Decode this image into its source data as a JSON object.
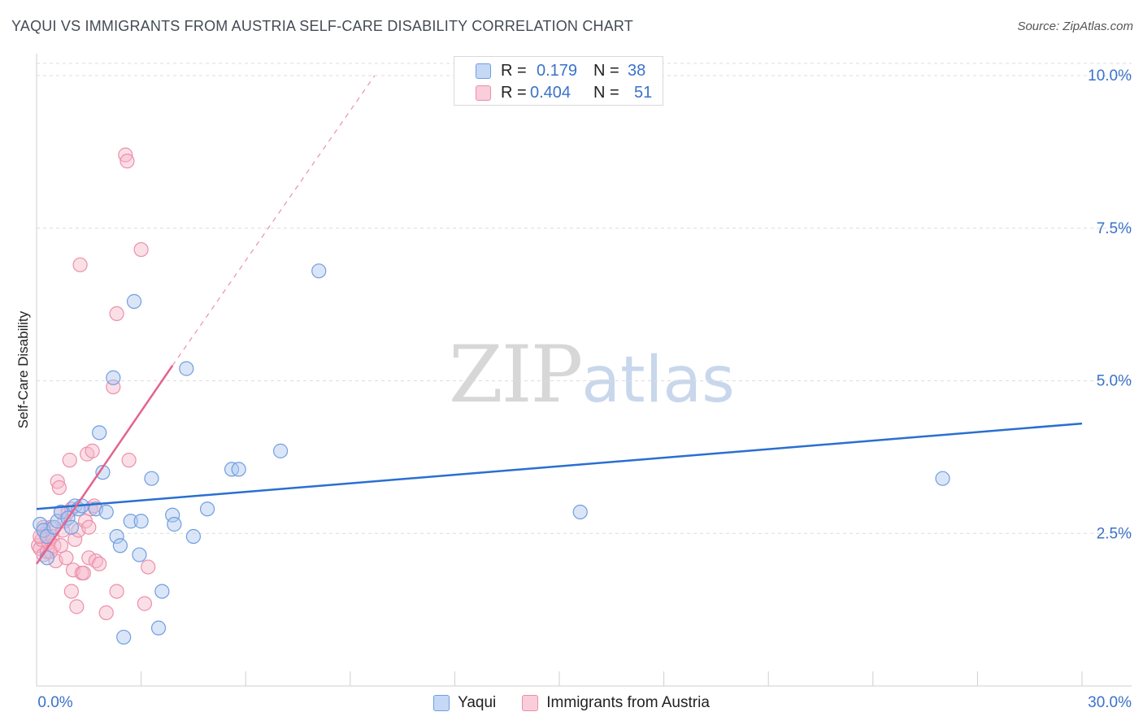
{
  "title": "YAQUI VS IMMIGRANTS FROM AUSTRIA SELF-CARE DISABILITY CORRELATION CHART",
  "source": "Source: ZipAtlas.com",
  "watermark": {
    "zip": "ZIP",
    "atlas": "atlas"
  },
  "colors": {
    "blue_fill": "#aec8f0",
    "blue_stroke": "#6f9ee0",
    "blue_line": "#2a6fd0",
    "pink_fill": "#f6b9ca",
    "pink_stroke": "#ec8faa",
    "pink_line": "#e3648d",
    "axis_text": "#3a72c9"
  },
  "legend": {
    "rows": [
      {
        "r_label": "R =",
        "r_value": "0.179",
        "n_label": "N =",
        "n_value": "38"
      },
      {
        "r_label": "R =",
        "r_value": "0.404",
        "n_label": "N =",
        "n_value": "51"
      }
    ]
  },
  "bottom_legend": {
    "series1": "Yaqui",
    "series2": "Immigrants from Austria"
  },
  "chart_data": {
    "type": "scatter",
    "title": "YAQUI VS IMMIGRANTS FROM AUSTRIA SELF-CARE DISABILITY CORRELATION CHART",
    "xlabel": "",
    "ylabel": "Self-Care Disability",
    "xlim": [
      0,
      30
    ],
    "ylim": [
      0,
      10.2
    ],
    "x_tick_labels": [
      "0.0%",
      "30.0%"
    ],
    "y_tick_labels": [
      "2.5%",
      "5.0%",
      "7.5%",
      "10.0%"
    ],
    "y_ticks": [
      2.5,
      5.0,
      7.5,
      10.0
    ],
    "x_ticks": [
      0,
      3,
      6,
      9,
      12,
      15,
      18,
      21,
      24,
      27,
      30
    ],
    "series": [
      {
        "name": "Yaqui",
        "R": 0.179,
        "N": 38,
        "trend": {
          "x": [
            0,
            30
          ],
          "y": [
            2.9,
            4.3
          ],
          "dashed_ext": false
        },
        "points": [
          [
            0.1,
            2.65
          ],
          [
            0.2,
            2.55
          ],
          [
            0.3,
            2.45
          ],
          [
            0.5,
            2.6
          ],
          [
            0.6,
            2.7
          ],
          [
            0.7,
            2.85
          ],
          [
            0.9,
            2.75
          ],
          [
            1.0,
            2.6
          ],
          [
            1.1,
            2.95
          ],
          [
            1.2,
            2.9
          ],
          [
            1.3,
            2.95
          ],
          [
            1.7,
            2.9
          ],
          [
            1.8,
            4.15
          ],
          [
            1.9,
            3.5
          ],
          [
            2.0,
            2.85
          ],
          [
            2.2,
            5.05
          ],
          [
            2.3,
            2.45
          ],
          [
            2.4,
            2.3
          ],
          [
            2.5,
            0.8
          ],
          [
            2.7,
            2.7
          ],
          [
            2.8,
            6.3
          ],
          [
            2.95,
            2.15
          ],
          [
            3.0,
            2.7
          ],
          [
            3.3,
            3.4
          ],
          [
            3.5,
            0.95
          ],
          [
            3.6,
            1.55
          ],
          [
            3.9,
            2.8
          ],
          [
            3.95,
            2.65
          ],
          [
            4.3,
            5.2
          ],
          [
            4.5,
            2.45
          ],
          [
            4.9,
            2.9
          ],
          [
            5.6,
            3.55
          ],
          [
            5.8,
            3.55
          ],
          [
            7.0,
            3.85
          ],
          [
            8.1,
            6.8
          ],
          [
            15.6,
            2.85
          ],
          [
            26.0,
            3.4
          ],
          [
            0.3,
            2.1
          ]
        ]
      },
      {
        "name": "Immigrants from Austria",
        "R": 0.404,
        "N": 51,
        "trend": {
          "x": [
            0,
            3.9
          ],
          "y": [
            2.0,
            5.25
          ],
          "dashed_to": [
            9.7,
            10.0
          ]
        },
        "points": [
          [
            0.05,
            2.3
          ],
          [
            0.1,
            2.25
          ],
          [
            0.15,
            2.4
          ],
          [
            0.2,
            2.15
          ],
          [
            0.25,
            2.5
          ],
          [
            0.3,
            2.2
          ],
          [
            0.35,
            2.35
          ],
          [
            0.4,
            2.6
          ],
          [
            0.45,
            2.45
          ],
          [
            0.5,
            2.3
          ],
          [
            0.55,
            2.05
          ],
          [
            0.6,
            3.35
          ],
          [
            0.65,
            3.25
          ],
          [
            0.7,
            2.85
          ],
          [
            0.75,
            2.55
          ],
          [
            0.8,
            2.7
          ],
          [
            0.85,
            2.1
          ],
          [
            0.9,
            2.85
          ],
          [
            0.95,
            3.7
          ],
          [
            1.0,
            1.55
          ],
          [
            1.05,
            1.9
          ],
          [
            1.1,
            2.4
          ],
          [
            1.15,
            1.3
          ],
          [
            1.2,
            2.55
          ],
          [
            1.25,
            6.9
          ],
          [
            1.3,
            1.85
          ],
          [
            1.35,
            1.85
          ],
          [
            1.4,
            2.7
          ],
          [
            1.45,
            3.8
          ],
          [
            1.5,
            2.1
          ],
          [
            1.55,
            2.9
          ],
          [
            1.6,
            3.85
          ],
          [
            1.65,
            2.95
          ],
          [
            1.7,
            2.05
          ],
          [
            1.8,
            2.0
          ],
          [
            2.0,
            1.2
          ],
          [
            2.2,
            4.9
          ],
          [
            2.3,
            6.1
          ],
          [
            2.3,
            1.55
          ],
          [
            2.55,
            8.7
          ],
          [
            2.6,
            8.6
          ],
          [
            2.65,
            3.7
          ],
          [
            3.0,
            7.15
          ],
          [
            3.1,
            1.35
          ],
          [
            3.2,
            1.95
          ],
          [
            0.2,
            2.6
          ],
          [
            0.4,
            2.2
          ],
          [
            0.7,
            2.3
          ],
          [
            1.0,
            2.9
          ],
          [
            1.5,
            2.6
          ],
          [
            0.1,
            2.45
          ]
        ]
      }
    ]
  }
}
